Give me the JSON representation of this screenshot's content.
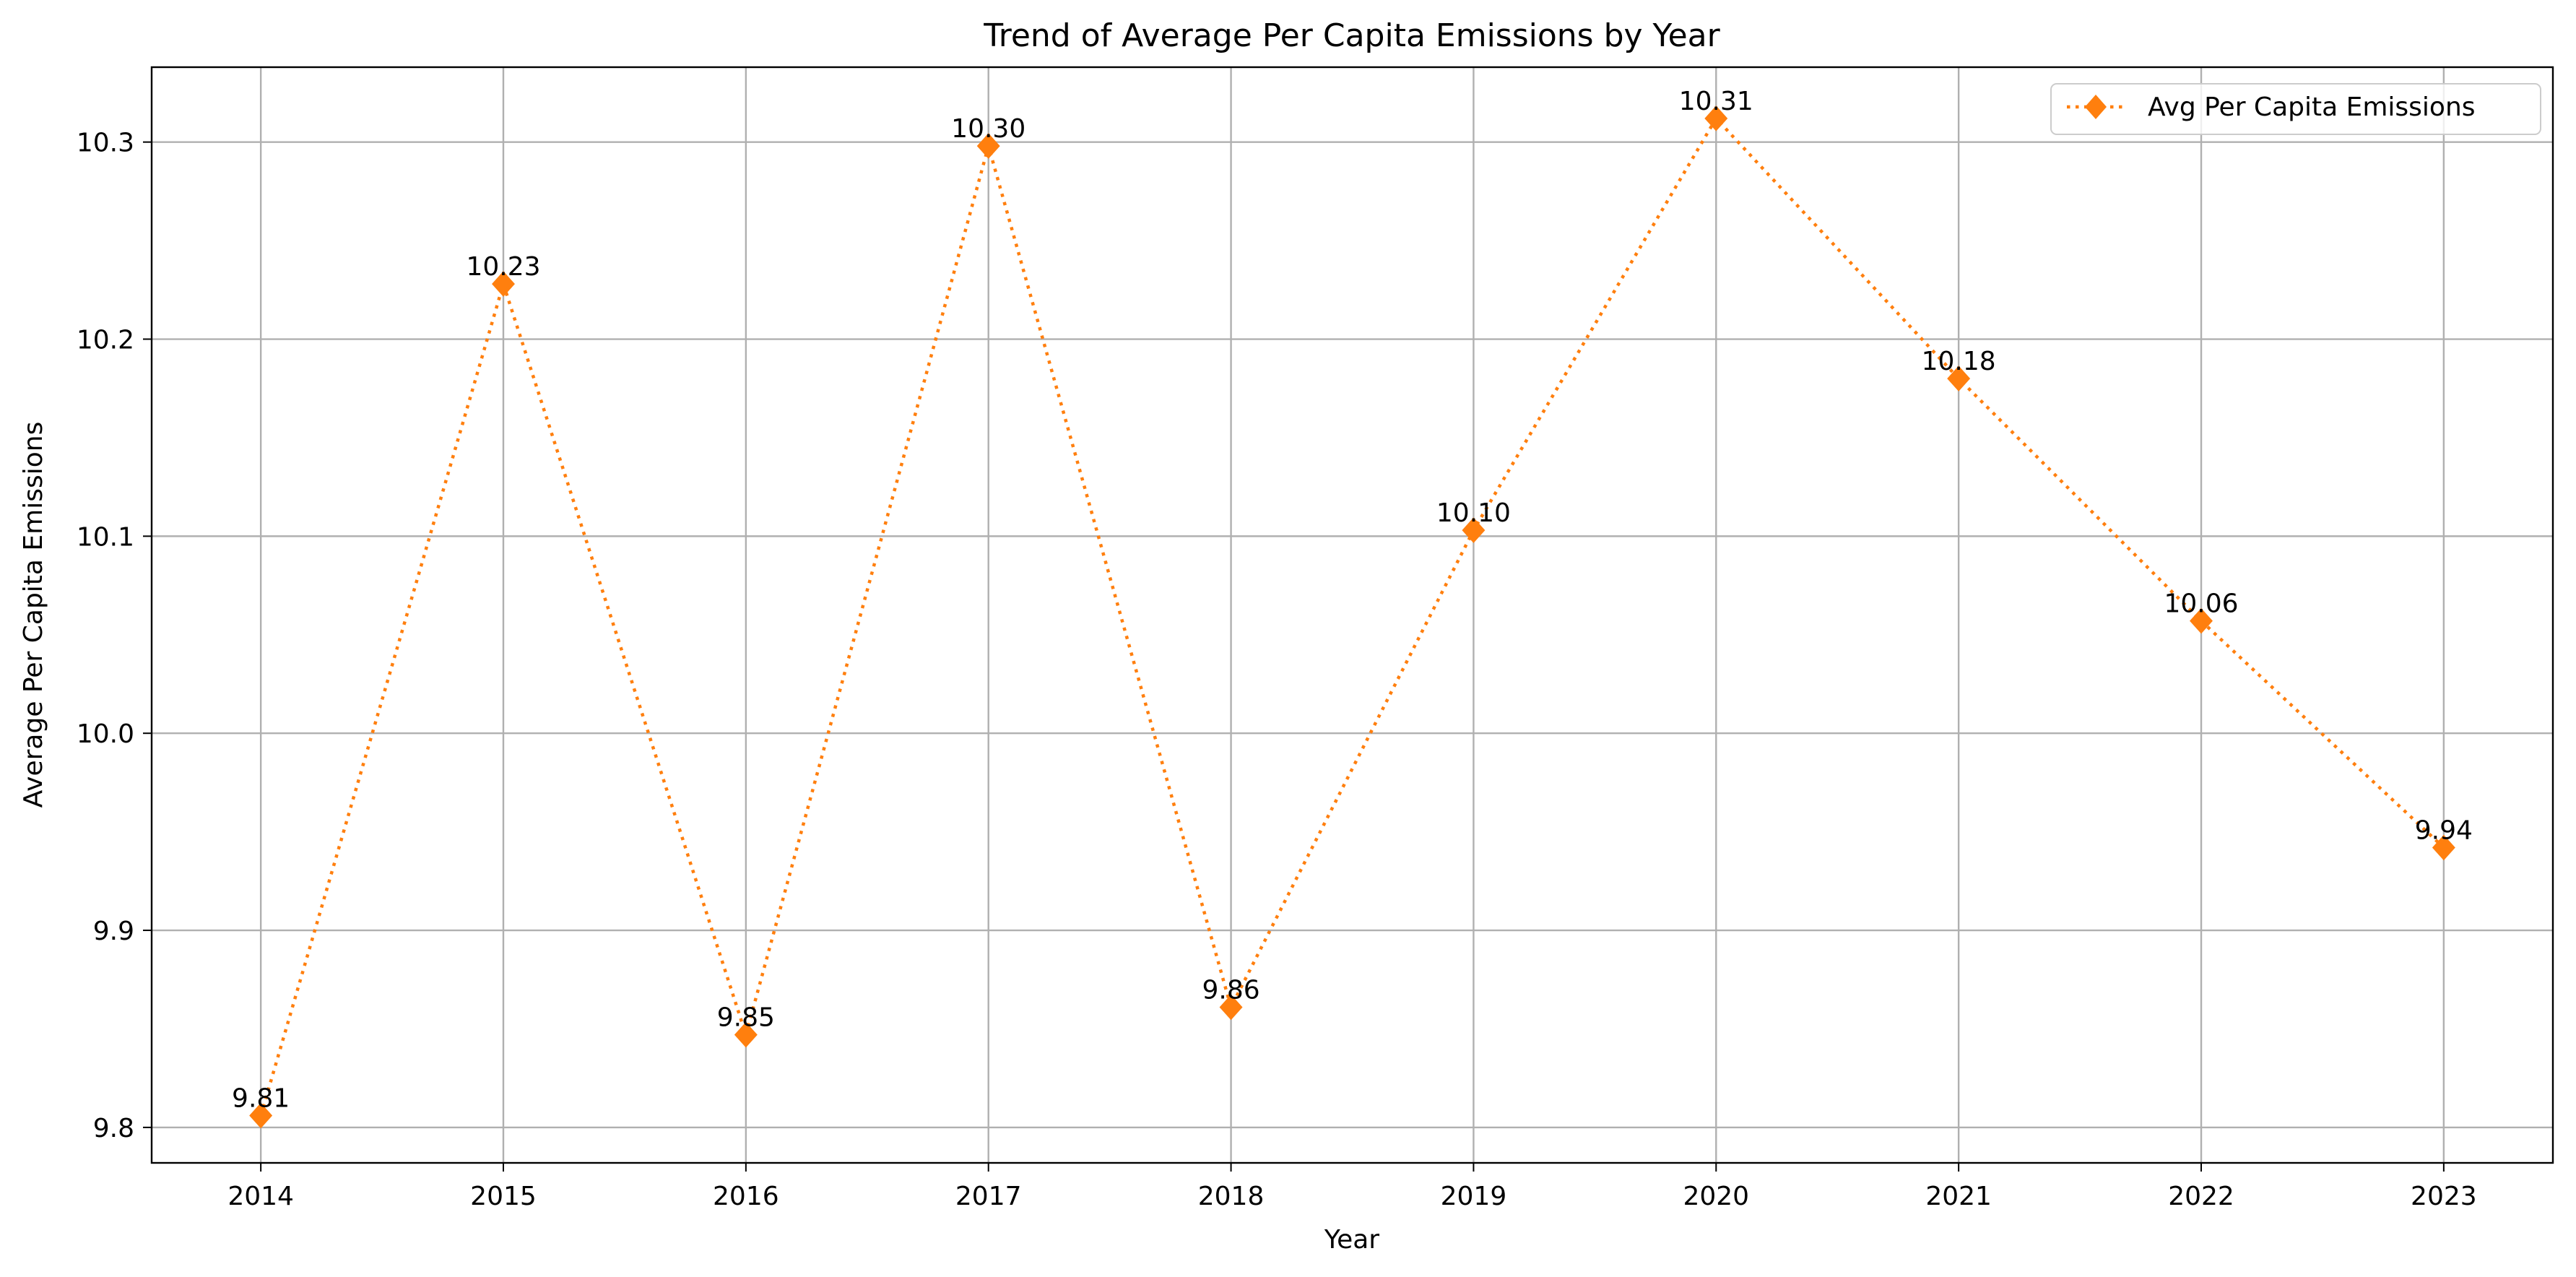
{
  "chart_data": {
    "type": "line",
    "title": "Trend of Average Per Capita Emissions by Year",
    "xlabel": "Year",
    "ylabel": "Average Per Capita Emissions",
    "x": [
      "2014",
      "2015",
      "2016",
      "2017",
      "2018",
      "2019",
      "2020",
      "2021",
      "2022",
      "2023"
    ],
    "y_ticks": [
      "9.8",
      "9.9",
      "10.0",
      "10.1",
      "10.2",
      "10.3"
    ],
    "y_tick_values": [
      9.8,
      9.9,
      10.0,
      10.1,
      10.2,
      10.3
    ],
    "ylim": [
      9.782,
      10.338
    ],
    "xlim": [
      2013.55,
      2023.45
    ],
    "grid": true,
    "legend_position": "top-right",
    "series": [
      {
        "name": "Avg Per Capita Emissions",
        "color": "#ff7f0e",
        "line_style": "dotted",
        "marker": "diamond",
        "values": [
          9.806,
          10.228,
          9.847,
          10.298,
          9.861,
          10.103,
          10.312,
          10.18,
          10.057,
          9.942
        ],
        "data_labels": [
          "9.81",
          "10.23",
          "9.85",
          "10.30",
          "9.86",
          "10.10",
          "10.31",
          "10.18",
          "10.06",
          "9.94"
        ]
      }
    ]
  }
}
